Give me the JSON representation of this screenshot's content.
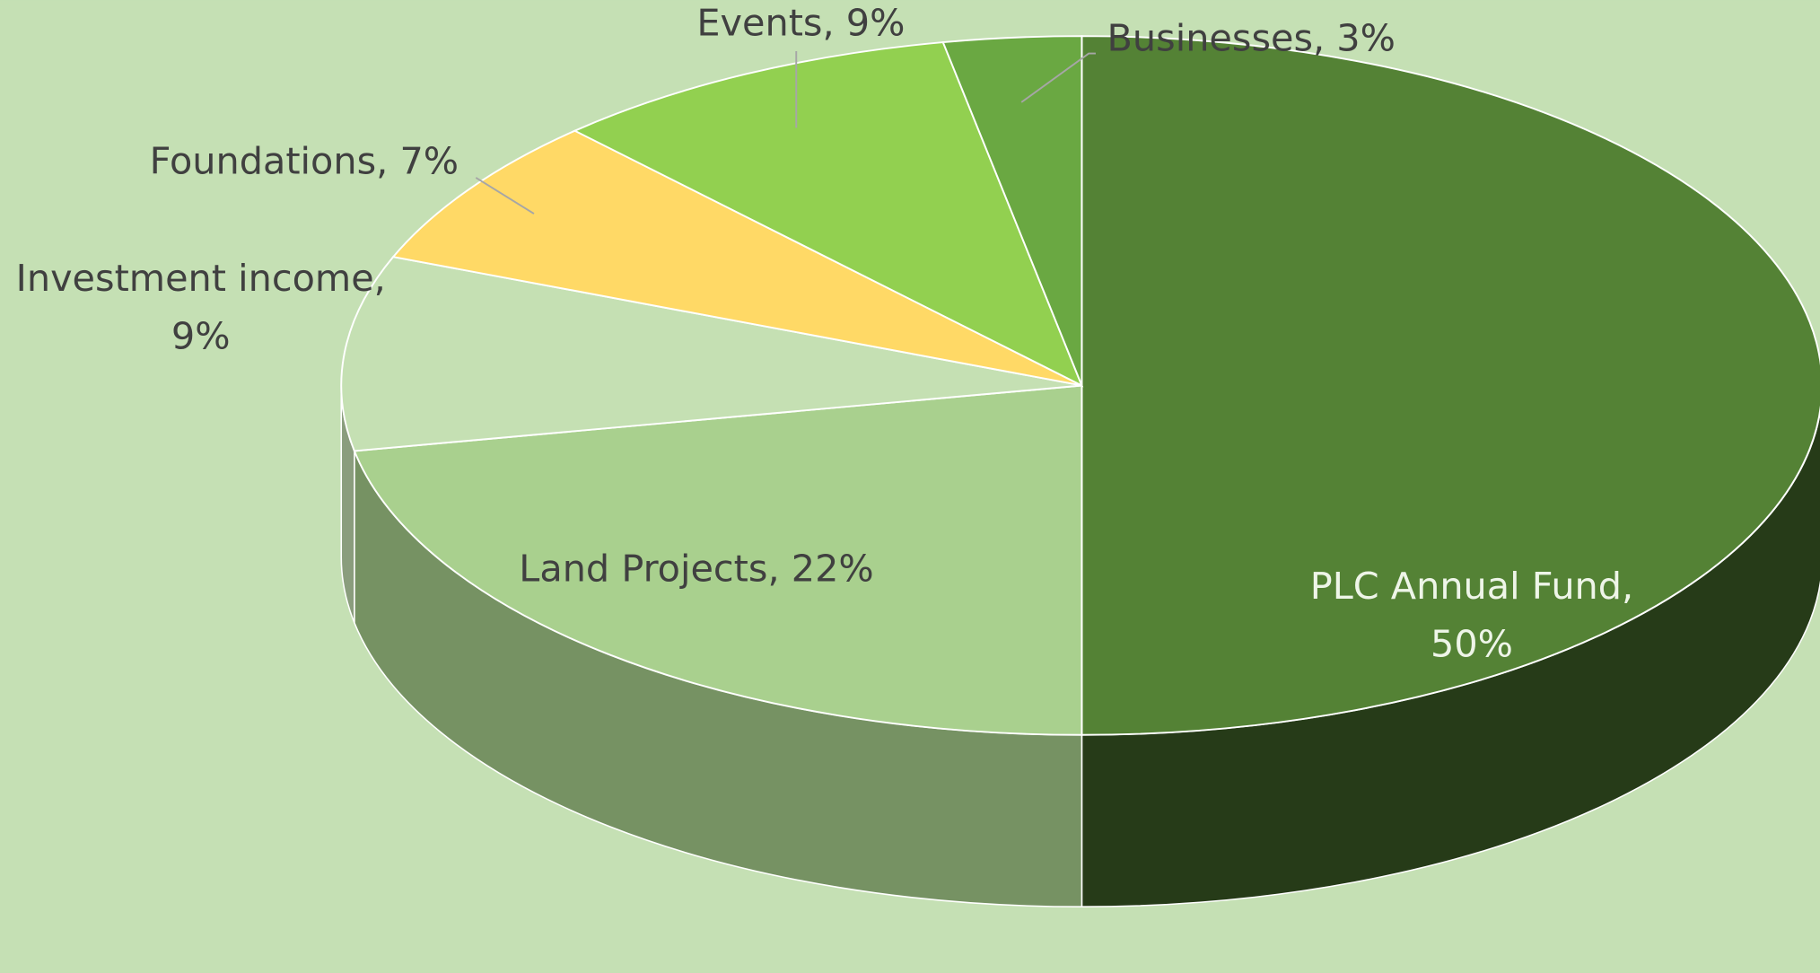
{
  "chart_data": {
    "type": "pie3d",
    "values": [
      50,
      22,
      9,
      7,
      9,
      3
    ],
    "value_labels": [
      "PLC Annual Fund, 50%",
      "Land Projects, 22%",
      "Investment income, 9%",
      "Foundations, 7%",
      "Events, 9%",
      "Businesses, 3%"
    ],
    "colors": [
      "#548235",
      "#a9d08e",
      "#c5e0b3",
      "#ffd966",
      "#92d050",
      "#6aa842"
    ]
  }
}
